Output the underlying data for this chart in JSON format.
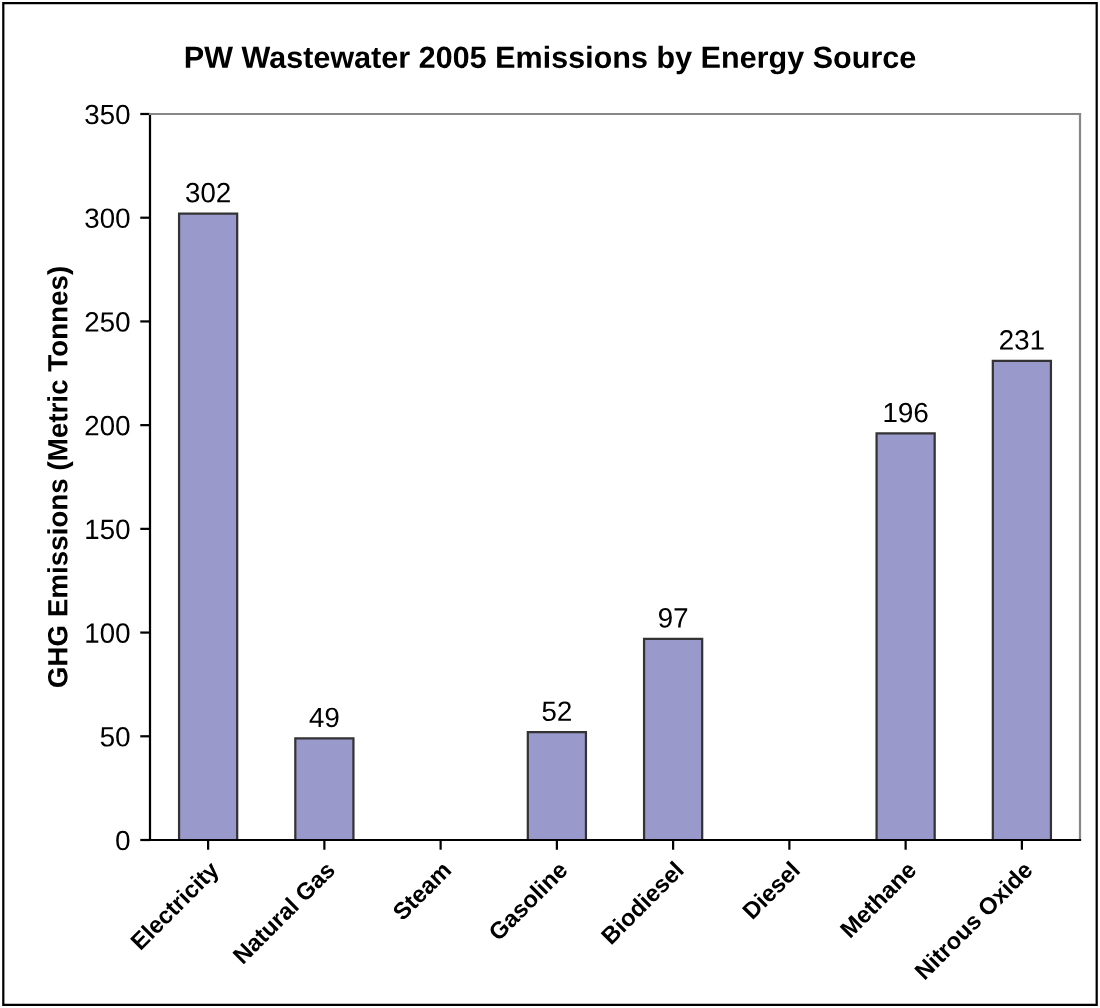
{
  "chart_data": {
    "type": "bar",
    "title": "PW Wastewater 2005 Emissions by Energy Source",
    "ylabel": "GHG Emissions (Metric Tonnes)",
    "categories": [
      "Electricity",
      "Natural Gas",
      "Steam",
      "Gasoline",
      "Biodiesel",
      "Diesel",
      "Methane",
      "Nitrous Oxide"
    ],
    "values": [
      302,
      49,
      null,
      52,
      97,
      null,
      196,
      231
    ],
    "color": "#9999cc",
    "ylim": [
      0,
      350
    ],
    "yticks": [
      0,
      50,
      100,
      150,
      200,
      250,
      300,
      350
    ],
    "grid": false,
    "legend": false,
    "data_labels": true
  }
}
